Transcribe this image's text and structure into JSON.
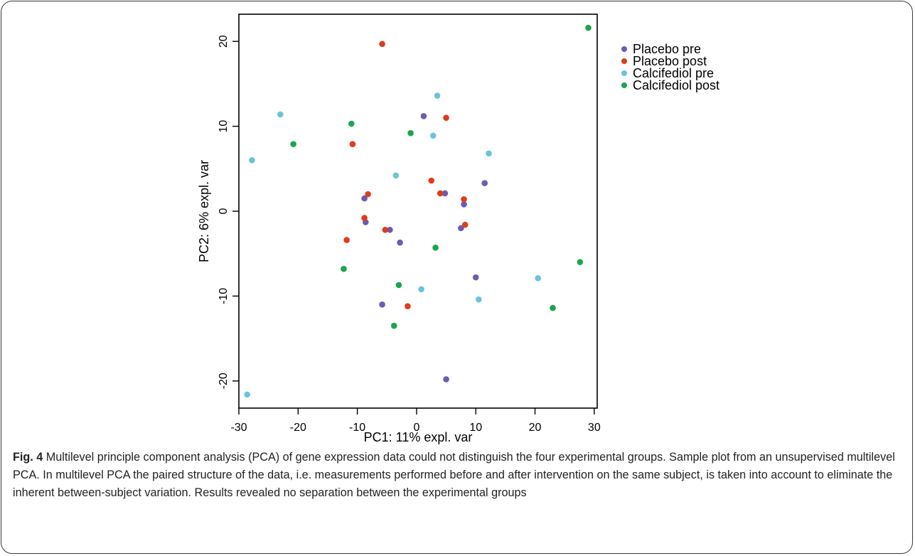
{
  "caption": {
    "label": "Fig. 4",
    "text": "Multilevel principle component analysis (PCA) of gene expression data could not distinguish the four experimental groups. Sample plot from an unsupervised multilevel PCA. In multilevel PCA the paired structure of the data, i.e. measurements performed before and after intervention on the same subject, is taken into account to eliminate the inherent between-subject variation. Results revealed no separation between the experimental groups"
  },
  "chart_data": {
    "type": "scatter",
    "title": "",
    "xlabel": "PC1: 11% expl. var",
    "ylabel": "PC2: 6% expl. var",
    "xlim": [
      -30,
      30.5
    ],
    "ylim": [
      -23.2,
      23.2
    ],
    "xticks": [
      -30,
      -20,
      -10,
      0,
      10,
      20,
      30
    ],
    "yticks": [
      -20,
      -10,
      0,
      10,
      20
    ],
    "grid": false,
    "legend_position": "top-right, outside plot",
    "series": [
      {
        "name": "Placebo pre",
        "color": "#6a5bb5",
        "points": [
          [
            1.2,
            11.2
          ],
          [
            11.5,
            3.3
          ],
          [
            4.8,
            2.1
          ],
          [
            8.0,
            0.8
          ],
          [
            -8.8,
            1.5
          ],
          [
            -8.6,
            -1.3
          ],
          [
            -4.5,
            -2.2
          ],
          [
            -2.8,
            -3.7
          ],
          [
            7.5,
            -2.0
          ],
          [
            10.0,
            -7.8
          ],
          [
            -5.8,
            -11.0
          ],
          [
            5.0,
            -19.8
          ]
        ]
      },
      {
        "name": "Placebo post",
        "color": "#e03c1a",
        "points": [
          [
            -5.8,
            19.7
          ],
          [
            5.0,
            11.0
          ],
          [
            -10.8,
            7.9
          ],
          [
            2.5,
            3.6
          ],
          [
            4.0,
            2.1
          ],
          [
            8.0,
            1.4
          ],
          [
            -8.2,
            2.0
          ],
          [
            -8.8,
            -0.8
          ],
          [
            -5.3,
            -2.2
          ],
          [
            8.2,
            -1.6
          ],
          [
            -11.8,
            -3.4
          ],
          [
            -1.5,
            -11.2
          ]
        ]
      },
      {
        "name": "Calcifediol pre",
        "color": "#6bc3db",
        "points": [
          [
            3.5,
            13.6
          ],
          [
            -23.0,
            11.4
          ],
          [
            2.8,
            8.9
          ],
          [
            12.2,
            6.8
          ],
          [
            -27.8,
            6.0
          ],
          [
            -3.5,
            4.2
          ],
          [
            0.8,
            -9.2
          ],
          [
            10.5,
            -10.4
          ],
          [
            20.5,
            -7.9
          ],
          [
            -28.6,
            -21.6
          ]
        ]
      },
      {
        "name": "Calcifediol post",
        "color": "#1aa64a",
        "points": [
          [
            29.0,
            21.6
          ],
          [
            -11.0,
            10.3
          ],
          [
            -1.0,
            9.2
          ],
          [
            -20.8,
            7.9
          ],
          [
            3.2,
            -4.3
          ],
          [
            -12.3,
            -6.8
          ],
          [
            -3.0,
            -8.7
          ],
          [
            -3.8,
            -13.5
          ],
          [
            27.6,
            -6.0
          ],
          [
            23.0,
            -11.4
          ]
        ]
      }
    ]
  }
}
